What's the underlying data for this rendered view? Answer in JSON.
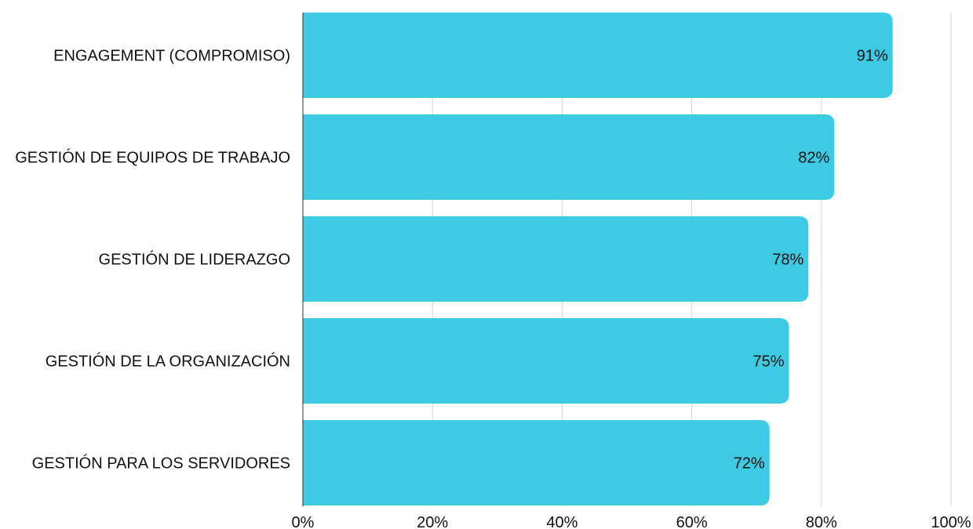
{
  "chart_data": {
    "type": "bar",
    "orientation": "horizontal",
    "categories": [
      "ENGAGEMENT (COMPROMISO)",
      "GESTIÓN DE EQUIPOS DE TRABAJO",
      "GESTIÓN DE LIDERAZGO",
      "GESTIÓN DE LA ORGANIZACIÓN",
      "GESTIÓN PARA LOS SERVIDORES"
    ],
    "values": [
      91,
      82,
      78,
      75,
      72
    ],
    "data_labels": [
      "91%",
      "82%",
      "78%",
      "75%",
      "72%"
    ],
    "xlim": [
      0,
      100
    ],
    "x_ticks": [
      0,
      20,
      40,
      60,
      80,
      100
    ],
    "x_tick_labels": [
      "0%",
      "20%",
      "40%",
      "60%",
      "80%",
      "100%"
    ],
    "grid": true,
    "legend": "none",
    "bar_color": "#3ecae3",
    "grid_color": "#d4d4d4",
    "axis_color": "#333333",
    "text_color": "#111111"
  }
}
